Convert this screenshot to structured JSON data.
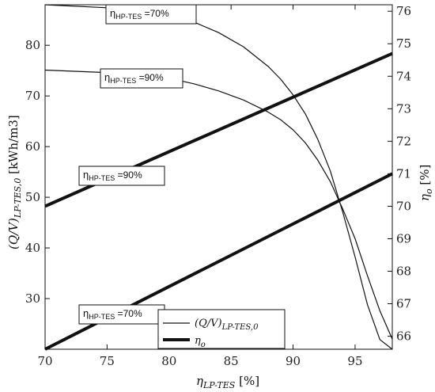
{
  "chart_data": {
    "type": "line",
    "xlabel": "η_{LP-TES} [%]",
    "ylabel_left": "(Q/V)_{LP-TES,0} [kWh/m3]",
    "ylabel_right": "η_o [%]",
    "xlim": [
      70,
      98
    ],
    "ylim_left": [
      20,
      88
    ],
    "ylim_right": [
      65.6,
      76.2
    ],
    "xticks": [
      70,
      75,
      80,
      85,
      90,
      95
    ],
    "yticks_left": [
      30,
      40,
      50,
      60,
      70,
      80
    ],
    "yticks_right": [
      66,
      67,
      68,
      69,
      70,
      71,
      72,
      73,
      74,
      75,
      76
    ],
    "series": [
      {
        "name": "(Q/V)_{LP-TES,0}",
        "axis": "left",
        "style": "thin",
        "x": [
          70,
          75,
          80,
          82,
          84,
          86,
          88,
          89,
          90,
          91,
          92,
          93,
          94,
          95,
          96,
          97,
          98
        ],
        "y": [
          88,
          87.4,
          86,
          84.6,
          82.5,
          79.7,
          75.8,
          73.3,
          70.2,
          66.4,
          61.4,
          55.2,
          47.1,
          38.2,
          28.8,
          21.9,
          20.0
        ]
      },
      {
        "name": "(Q/V)_{LP-TES,0}",
        "axis": "left",
        "style": "thin",
        "x": [
          70,
          75,
          80,
          82,
          84,
          86,
          88,
          89,
          90,
          91,
          92,
          93,
          94,
          95,
          96,
          97,
          98
        ],
        "y": [
          75.1,
          74.6,
          73.5,
          72.4,
          71.0,
          69.2,
          66.8,
          65.3,
          63.3,
          60.7,
          57.3,
          53.1,
          47.7,
          41.8,
          34.5,
          27.6,
          22.0
        ]
      },
      {
        "name": "η_o",
        "axis": "right",
        "style": "thick",
        "x": [
          70,
          98
        ],
        "y": [
          70.0,
          74.7
        ]
      },
      {
        "name": "η_o",
        "axis": "right",
        "style": "thick",
        "x": [
          70,
          98
        ],
        "y": [
          65.6,
          71.0
        ]
      }
    ],
    "annotations": [
      {
        "base": "η",
        "sub": "HP-TES",
        "value": "=70%"
      },
      {
        "base": "η",
        "sub": "HP-TES",
        "value": "=90%"
      },
      {
        "base": "η",
        "sub": "HP-TES",
        "value": "=90%"
      },
      {
        "base": "η",
        "sub": "HP-TES",
        "value": "=70%"
      }
    ],
    "legend": {
      "placement": "bottom-center",
      "entries": [
        {
          "label": "(Q/V)_{LP-TES,0}",
          "style": "thin"
        },
        {
          "label": "η_o",
          "style": "thick"
        }
      ]
    },
    "grid": false
  }
}
